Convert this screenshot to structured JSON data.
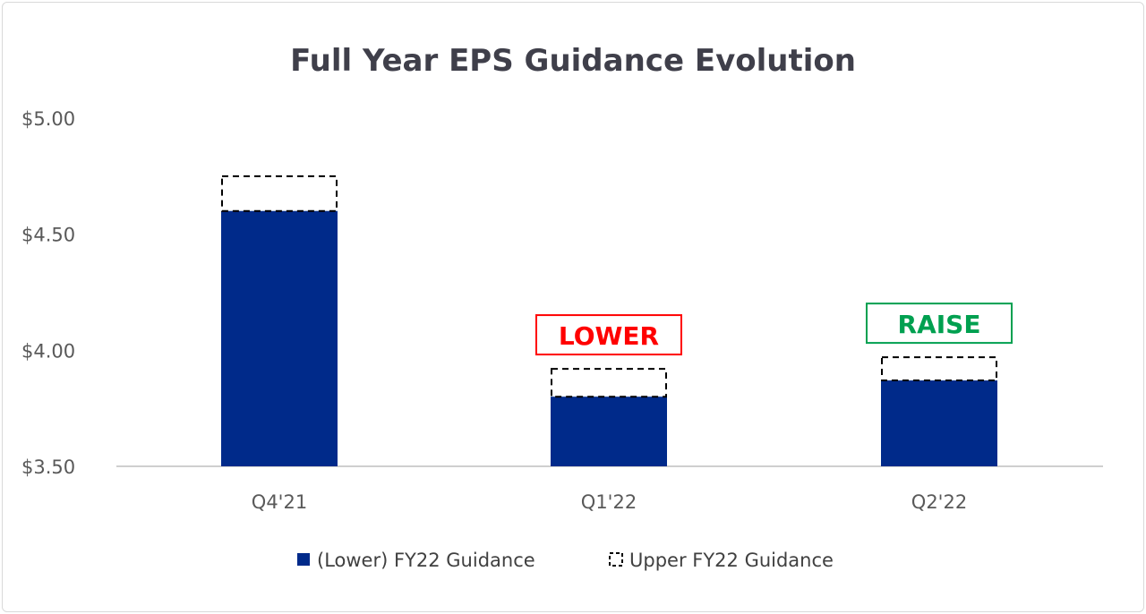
{
  "chart_data": {
    "type": "bar",
    "title": "Full Year EPS Guidance Evolution",
    "categories": [
      "Q4'21",
      "Q1'22",
      "Q2'22"
    ],
    "series": [
      {
        "name": "(Lower) FY22 Guidance",
        "values": [
          4.6,
          3.8,
          3.87
        ],
        "color": "#002a8a"
      },
      {
        "name": "Upper FY22 Guidance",
        "values": [
          4.75,
          3.92,
          3.97
        ],
        "style": "dashed-outline"
      }
    ],
    "ylim": [
      3.5,
      5.0
    ],
    "yticks": [
      "$3.50",
      "$4.00",
      "$4.50",
      "$5.00"
    ],
    "ytick_values": [
      3.5,
      4.0,
      4.5,
      5.0
    ],
    "grid": false,
    "legend": "bottom",
    "annotations": [
      {
        "category": "Q1'22",
        "text": "LOWER",
        "color": "#ff0000"
      },
      {
        "category": "Q2'22",
        "text": "RAISE",
        "color": "#00a050"
      }
    ]
  }
}
